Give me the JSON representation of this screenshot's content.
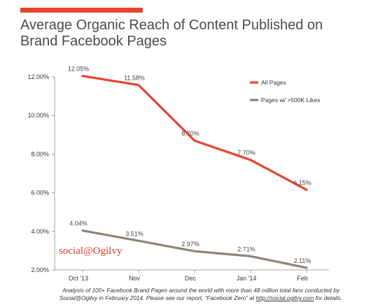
{
  "header": {
    "title_line1": "Average Organic Reach of Content Published on",
    "title_line2": "Brand Facebook Pages",
    "accent_color": "#e8432f"
  },
  "brand": {
    "logo_text": "social@Ogilvy"
  },
  "footnote": {
    "line1": "Analysis of 100+ Facebook Brand Pages around the world with more than 48 million total fans conducted by",
    "line2_prefix": "Social@Ogilvy in February 2014. Please see our report, “Facebook Zero” at ",
    "link_text": "http://social.ogilvy.com",
    "line2_suffix": " for details."
  },
  "chart_data": {
    "type": "line",
    "categories": [
      "Oct '13",
      "Nov",
      "Dec",
      "Jan '14",
      "Feb"
    ],
    "series": [
      {
        "name": "All Pages",
        "values": [
          12.05,
          11.58,
          8.7,
          7.7,
          6.15
        ],
        "labels": [
          "12.05%",
          "11.58%",
          "8.70%",
          "7.70%",
          "6.15%"
        ],
        "color": "#e8432f"
      },
      {
        "name": "Pages w/ >500K Likes",
        "values": [
          4.04,
          3.51,
          2.97,
          2.71,
          2.11
        ],
        "labels": [
          "4.04%",
          "3.51%",
          "2.97%",
          "2.71%",
          "2.11%"
        ],
        "color": "#8c8478"
      }
    ],
    "y_ticks": [
      2,
      4,
      6,
      8,
      10,
      12
    ],
    "y_tick_labels": [
      "2.00%",
      "4.00%",
      "6.00%",
      "8.00%",
      "10.00%",
      "12.00%"
    ],
    "ylim": [
      2,
      12
    ],
    "grid": false,
    "legend_position": "top-right"
  }
}
